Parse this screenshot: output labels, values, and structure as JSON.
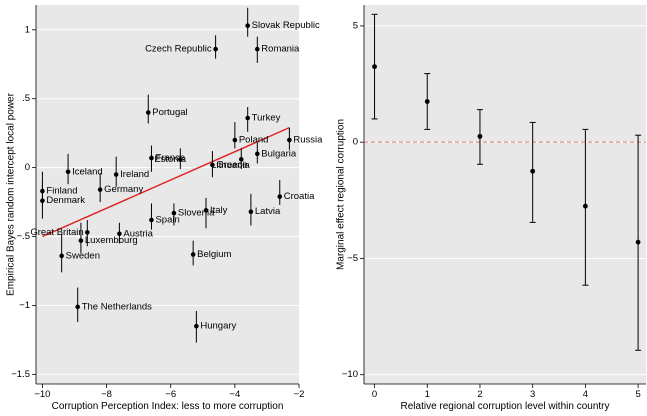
{
  "chart_data": [
    {
      "type": "scatter",
      "xlabel": "Corruption Perception Index: less to more corruption",
      "ylabel": "Empirical Bayes random intercept local power",
      "xlim": [
        -10.2,
        -2.0
      ],
      "ylim": [
        -1.57,
        1.18
      ],
      "xticks": [
        -10,
        -8,
        -6,
        -4,
        -2
      ],
      "xtick_labels": [
        "−10",
        "−8",
        "−6",
        "−4",
        "−2"
      ],
      "yticks": [
        1,
        0.5,
        0,
        -0.5,
        -1,
        -1.5
      ],
      "ytick_labels": [
        "1",
        ".5",
        "0",
        "−.5",
        "−1",
        "−1.5"
      ],
      "fit_line": {
        "x": [
          -10,
          -2.3
        ],
        "y": [
          -0.5,
          0.29
        ],
        "color": "#e0201f"
      },
      "points": [
        {
          "label": "Slovak Republic",
          "x": -3.6,
          "y": 1.03,
          "lo": 0.95,
          "hi": 1.16
        },
        {
          "label": "Czech Republic",
          "x": -4.6,
          "y": 0.86,
          "lo": 0.79,
          "hi": 0.96
        },
        {
          "label": "Romania",
          "x": -3.3,
          "y": 0.86,
          "lo": 0.76,
          "hi": 0.95
        },
        {
          "label": "Portugal",
          "x": -6.7,
          "y": 0.4,
          "lo": 0.32,
          "hi": 0.53
        },
        {
          "label": "Turkey",
          "x": -3.6,
          "y": 0.36,
          "lo": 0.26,
          "hi": 0.44
        },
        {
          "label": "Russia",
          "x": -2.3,
          "y": 0.2,
          "lo": 0.13,
          "hi": 0.29
        },
        {
          "label": "Poland",
          "x": -4.0,
          "y": 0.2,
          "lo": 0.14,
          "hi": 0.33
        },
        {
          "label": "Bulgaria",
          "x": -3.3,
          "y": 0.1,
          "lo": 0.03,
          "hi": 0.18
        },
        {
          "label": "France",
          "x": -6.6,
          "y": 0.07,
          "lo": -0.03,
          "hi": 0.16
        },
        {
          "label": "Estonia",
          "x": -5.7,
          "y": 0.06,
          "lo": -0.01,
          "hi": 0.14
        },
        {
          "label": "Lithuania",
          "x": -3.8,
          "y": 0.06,
          "lo": -0.01,
          "hi": 0.14
        },
        {
          "label": "Greece",
          "x": -4.7,
          "y": 0.02,
          "lo": -0.07,
          "hi": 0.12
        },
        {
          "label": "Iceland",
          "x": -9.2,
          "y": -0.03,
          "lo": -0.12,
          "hi": 0.1
        },
        {
          "label": "Ireland",
          "x": -7.7,
          "y": -0.05,
          "lo": -0.14,
          "hi": 0.08
        },
        {
          "label": "Germany",
          "x": -8.2,
          "y": -0.16,
          "lo": -0.25,
          "hi": -0.04
        },
        {
          "label": "Finland",
          "x": -10.0,
          "y": -0.17,
          "lo": -0.27,
          "hi": -0.03
        },
        {
          "label": "Denmark",
          "x": -10.0,
          "y": -0.24,
          "lo": -0.37,
          "hi": -0.11
        },
        {
          "label": "Croatia",
          "x": -2.6,
          "y": -0.21,
          "lo": -0.27,
          "hi": -0.09
        },
        {
          "label": "Italy",
          "x": -4.9,
          "y": -0.31,
          "lo": -0.44,
          "hi": -0.22
        },
        {
          "label": "Latvia",
          "x": -3.5,
          "y": -0.32,
          "lo": -0.42,
          "hi": -0.19
        },
        {
          "label": "Slovenia",
          "x": -5.9,
          "y": -0.33,
          "lo": -0.42,
          "hi": -0.26
        },
        {
          "label": "Spain",
          "x": -6.6,
          "y": -0.38,
          "lo": -0.45,
          "hi": -0.26
        },
        {
          "label": "Great Britain",
          "x": -8.6,
          "y": -0.47,
          "lo": -0.57,
          "hi": -0.38
        },
        {
          "label": "Austria",
          "x": -7.6,
          "y": -0.48,
          "lo": -0.55,
          "hi": -0.4
        },
        {
          "label": "Luxembourg",
          "x": -8.8,
          "y": -0.53,
          "lo": -0.62,
          "hi": -0.4
        },
        {
          "label": "Sweden",
          "x": -9.4,
          "y": -0.64,
          "lo": -0.76,
          "hi": -0.48
        },
        {
          "label": "Belgium",
          "x": -5.3,
          "y": -0.63,
          "lo": -0.71,
          "hi": -0.53
        },
        {
          "label": "The Netherlands",
          "x": -8.9,
          "y": -1.01,
          "lo": -1.12,
          "hi": -0.87
        },
        {
          "label": "Hungary",
          "x": -5.2,
          "y": -1.15,
          "lo": -1.27,
          "hi": -1.04
        }
      ]
    },
    {
      "type": "scatter",
      "xlabel": "Relative regional corruption level within country",
      "ylabel": "Marginal effect regional corruption",
      "xlim": [
        -0.2,
        5.15
      ],
      "ylim": [
        -10.4,
        5.9
      ],
      "xticks": [
        0,
        1,
        2,
        3,
        4,
        5
      ],
      "xtick_labels": [
        "0",
        "1",
        "2",
        "3",
        "4",
        "5"
      ],
      "yticks": [
        5,
        0,
        -5,
        -10
      ],
      "ytick_labels": [
        "5",
        "0",
        "−5",
        "−10"
      ],
      "reference_line": {
        "y": 0,
        "color": "#d97a72",
        "style": "dashed"
      },
      "points": [
        {
          "x": 0,
          "y": 3.25,
          "lo": 1.0,
          "hi": 5.5
        },
        {
          "x": 1,
          "y": 1.75,
          "lo": 0.55,
          "hi": 2.95
        },
        {
          "x": 2,
          "y": 0.25,
          "lo": -0.95,
          "hi": 1.4
        },
        {
          "x": 3,
          "y": -1.25,
          "lo": -3.45,
          "hi": 0.85
        },
        {
          "x": 4,
          "y": -2.75,
          "lo": -6.15,
          "hi": 0.55
        },
        {
          "x": 5,
          "y": -4.3,
          "lo": -8.95,
          "hi": 0.3
        }
      ]
    }
  ]
}
